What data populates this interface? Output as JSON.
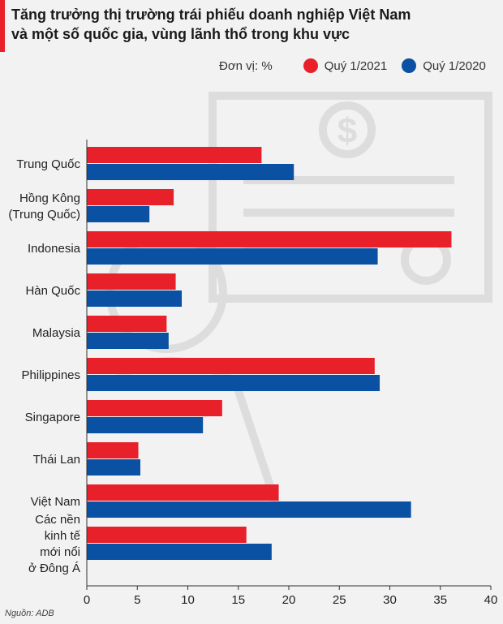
{
  "title": {
    "line1": "Tăng trưởng thị trường trái phiếu doanh nghiệp Việt Nam",
    "line2": "và một số quốc gia, vùng lãnh thổ trong khu vực"
  },
  "legend": {
    "unit_label": "Đơn vị: %"
  },
  "source": "Nguồn: ADB",
  "colors": {
    "q1_2021": "#e8202a",
    "q1_2020": "#0b51a3",
    "axis": "#333333",
    "watermark": "#d6d6d6"
  },
  "chart_data": {
    "type": "bar",
    "orientation": "horizontal",
    "title": "Tăng trưởng thị trường trái phiếu doanh nghiệp Việt Nam và một số quốc gia, vùng lãnh thổ trong khu vực",
    "unit": "Đơn vị: %",
    "categories": [
      [
        "Trung Quốc"
      ],
      [
        "Hồng Kông",
        "(Trung Quốc)"
      ],
      [
        "Indonesia"
      ],
      [
        "Hàn Quốc"
      ],
      [
        "Malaysia"
      ],
      [
        "Philippines"
      ],
      [
        "Singapore"
      ],
      [
        "Thái Lan"
      ],
      [
        "Việt Nam"
      ],
      [
        "Các nền",
        "kinh tế",
        "mới nổi",
        "ở Đông Á"
      ]
    ],
    "series": [
      {
        "name": "Quý 1/2021",
        "values": [
          17.3,
          8.6,
          36.1,
          8.8,
          7.9,
          28.5,
          13.4,
          5.1,
          19.0,
          15.8
        ]
      },
      {
        "name": "Quý 1/2020",
        "values": [
          20.5,
          6.2,
          28.8,
          9.4,
          8.1,
          29.0,
          11.5,
          5.3,
          32.1,
          18.3
        ]
      }
    ],
    "xlim": [
      0,
      40
    ],
    "xticks": [
      "0",
      "5",
      "10",
      "15",
      "20",
      "25",
      "30",
      "35",
      "40"
    ],
    "grid": false,
    "legend_position": "top-right"
  }
}
